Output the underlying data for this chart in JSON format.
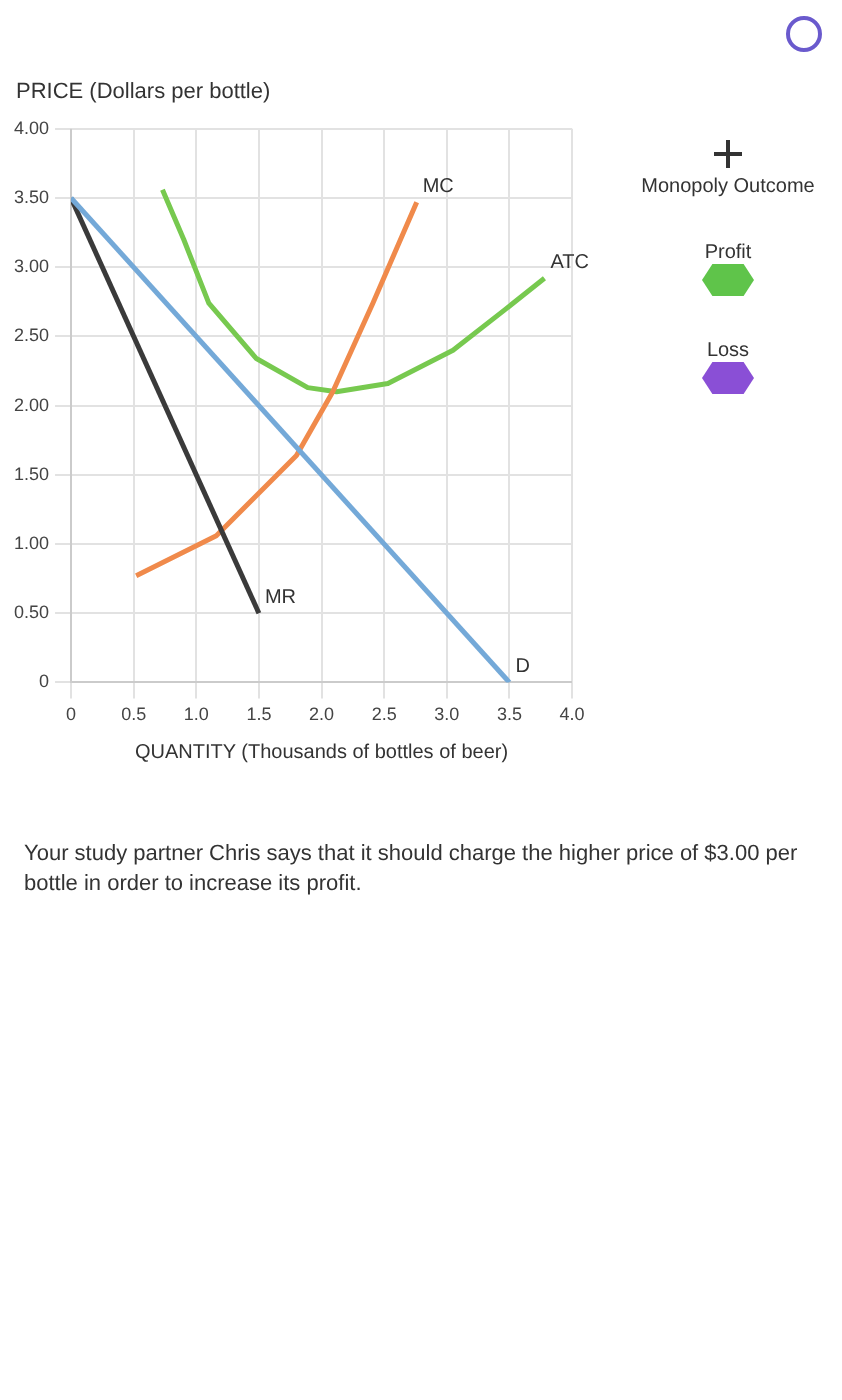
{
  "chart_data": {
    "type": "line",
    "xlabel": "QUANTITY (Thousands of bottles of beer)",
    "ylabel": "PRICE (Dollars per bottle)",
    "xlim": [
      0,
      4
    ],
    "ylim": [
      0,
      4
    ],
    "xticks": [
      0,
      0.5,
      {
        "value": 1,
        "label": "1.0"
      },
      1.5,
      {
        "value": 2,
        "label": "2.0"
      },
      2.5,
      {
        "value": 3,
        "label": "3.0"
      },
      3.5,
      {
        "value": 4,
        "label": "4.0"
      }
    ],
    "yticks": [
      0,
      {
        "value": 0.5,
        "label": "0.50"
      },
      {
        "value": 1,
        "label": "1.00"
      },
      {
        "value": 1.5,
        "label": "1.50"
      },
      {
        "value": 2,
        "label": "2.00"
      },
      {
        "value": 2.5,
        "label": "2.50"
      },
      {
        "value": 3,
        "label": "3.00"
      },
      {
        "value": 3.5,
        "label": "3.50"
      },
      {
        "value": 4,
        "label": "4.00"
      }
    ],
    "grid": true,
    "legend": false,
    "marker": "none",
    "series": [
      {
        "name": "D",
        "color": "#74a9d8",
        "x": [
          0,
          3.5
        ],
        "values": [
          3.5,
          0
        ]
      },
      {
        "name": "MR",
        "color": "#3a3a3a",
        "x": [
          0,
          1.5
        ],
        "values": [
          3.5,
          0.5
        ]
      },
      {
        "name": "MC",
        "color": "#f08a4b",
        "x": [
          0.52,
          1.16,
          1.8,
          2.09,
          2.41,
          2.76
        ],
        "values": [
          0.77,
          1.06,
          1.64,
          2.1,
          2.74,
          3.47
        ]
      },
      {
        "name": "ATC",
        "color": "#77c94f",
        "x": [
          0.73,
          0.9,
          1.1,
          1.48,
          1.89,
          2.12,
          2.53,
          3.05,
          3.46,
          3.78
        ],
        "values": [
          3.56,
          3.2,
          2.74,
          2.34,
          2.13,
          2.1,
          2.16,
          2.4,
          2.69,
          2.92
        ]
      }
    ],
    "annotations": [
      "Monopoly Outcome",
      "Profit",
      "Loss",
      "Your study partner Chris says that it should charge the higher price of $3.00 per bottle in order to increase its profit."
    ]
  }
}
